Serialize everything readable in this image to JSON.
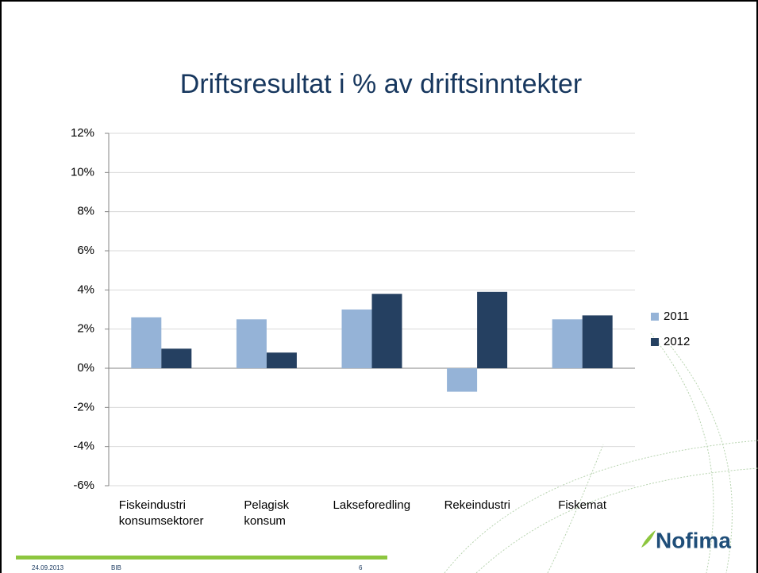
{
  "chart_data": {
    "type": "bar",
    "title": "Driftsresultat i % av driftsinntekter",
    "categories": [
      "Fiskeindustri\nkonsumsektorer",
      "Pelagisk\nkonsum",
      "Lakseforedling",
      "Rekeindustri",
      "Fiskemat"
    ],
    "series": [
      {
        "name": "2011",
        "color": "#95b3d7",
        "values": [
          2.6,
          2.5,
          3.0,
          -1.2,
          2.5
        ]
      },
      {
        "name": "2012",
        "color": "#254061",
        "values": [
          1.0,
          0.8,
          3.8,
          3.9,
          2.7
        ]
      }
    ],
    "ylim": [
      -6,
      12
    ],
    "yticks": [
      {
        "value": -6,
        "label": "-6%"
      },
      {
        "value": -4,
        "label": "-4%"
      },
      {
        "value": -2,
        "label": "-2%"
      },
      {
        "value": 0,
        "label": "0%"
      },
      {
        "value": 2,
        "label": "2%"
      },
      {
        "value": 4,
        "label": "4%"
      },
      {
        "value": 6,
        "label": "6%"
      },
      {
        "value": 8,
        "label": "8%"
      },
      {
        "value": 10,
        "label": "10%"
      },
      {
        "value": 12,
        "label": "12%"
      }
    ],
    "grid": true,
    "legend": "right"
  },
  "footer": {
    "date": "24.09.2013",
    "author": "BIB",
    "page": "6",
    "logo": "Nofima"
  }
}
